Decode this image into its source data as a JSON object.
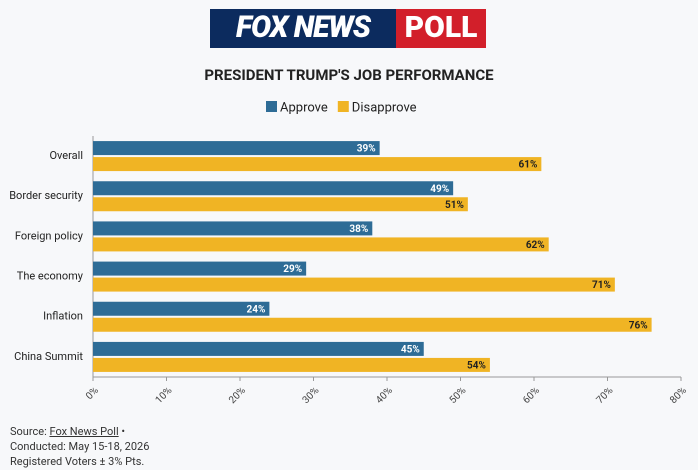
{
  "chart_data": {
    "type": "bar",
    "orientation": "horizontal",
    "logo": {
      "brand": "FOX NEWS",
      "product": "POLL"
    },
    "title": "PRESIDENT TRUMP'S JOB PERFORMANCE",
    "categories": [
      "Overall",
      "Border security",
      "Foreign policy",
      "The economy",
      "Inflation",
      "China Summit"
    ],
    "series": [
      {
        "name": "Approve",
        "color": "#2e6c96",
        "label_color": "#ffffff",
        "values": [
          39,
          49,
          38,
          29,
          24,
          45
        ],
        "value_labels": [
          "39%",
          "49%",
          "38%",
          "29%",
          "24%",
          "45%"
        ]
      },
      {
        "name": "Disapprove",
        "color": "#f0b424",
        "label_color": "#222222",
        "values": [
          61,
          51,
          62,
          71,
          76,
          54
        ],
        "value_labels": [
          "61%",
          "51%",
          "62%",
          "71%",
          "76%",
          "54%"
        ]
      }
    ],
    "xlim": [
      0,
      80
    ],
    "xticks": [
      {
        "value": 0,
        "label": "0%"
      },
      {
        "value": 10,
        "label": "10%"
      },
      {
        "value": 20,
        "label": "20%"
      },
      {
        "value": 30,
        "label": "30%"
      },
      {
        "value": 40,
        "label": "40%"
      },
      {
        "value": 50,
        "label": "50%"
      },
      {
        "value": 60,
        "label": "60%"
      },
      {
        "value": 70,
        "label": "70%"
      },
      {
        "value": 80,
        "label": "80%"
      }
    ],
    "grid": false,
    "legend": "top",
    "footer": {
      "source_prefix": "Source:",
      "source_name": "Fox News Poll",
      "source_suffix": "•",
      "conducted": "Conducted: May 15-18, 2026",
      "sample": "Registered Voters ± 3% Pts."
    }
  }
}
